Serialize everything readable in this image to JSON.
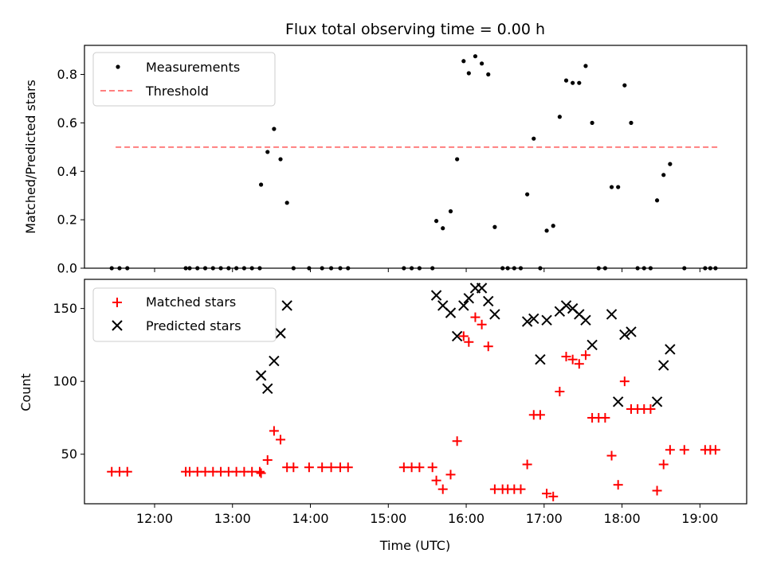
{
  "title": "Flux total observing time = 0.00 h",
  "colors": {
    "measurement": "#000000",
    "threshold": "#ff7f7f",
    "matched": "#ff0000",
    "predicted": "#000000"
  },
  "chart_data": [
    {
      "type": "scatter",
      "title": "Flux total observing time = 0.00 h",
      "ylabel": "Matched/Predicted stars",
      "xlabel": "",
      "xlim": [
        "11:06",
        "19:36"
      ],
      "ylim": [
        0,
        0.92
      ],
      "yticks": [
        "0.0",
        "0.2",
        "0.4",
        "0.6",
        "0.8"
      ],
      "legend_position": "top-left",
      "legend": [
        "Measurements",
        "Threshold"
      ],
      "threshold": {
        "name": "Threshold",
        "y": 0.5,
        "x_start": "11:30",
        "x_end": "19:15"
      },
      "series": [
        {
          "name": "Measurements",
          "points": [
            [
              "11:27",
              0
            ],
            [
              "11:33",
              0
            ],
            [
              "11:39",
              0
            ],
            [
              "12:24",
              0
            ],
            [
              "12:27",
              0
            ],
            [
              "12:33",
              0
            ],
            [
              "12:39",
              0
            ],
            [
              "12:45",
              0
            ],
            [
              "12:51",
              0
            ],
            [
              "12:57",
              0
            ],
            [
              "13:03",
              0
            ],
            [
              "13:09",
              0
            ],
            [
              "13:15",
              0
            ],
            [
              "13:21",
              0
            ],
            [
              "13:22",
              0.345
            ],
            [
              "13:27",
              0.48
            ],
            [
              "13:32",
              0.575
            ],
            [
              "13:37",
              0.45
            ],
            [
              "13:42",
              0.27
            ],
            [
              "13:47",
              0
            ],
            [
              "13:59",
              0
            ],
            [
              "14:09",
              0
            ],
            [
              "14:16",
              0
            ],
            [
              "14:23",
              0
            ],
            [
              "14:29",
              0
            ],
            [
              "15:12",
              0
            ],
            [
              "15:18",
              0
            ],
            [
              "15:24",
              0
            ],
            [
              "15:34",
              0
            ],
            [
              "15:37",
              0.195
            ],
            [
              "15:42",
              0.165
            ],
            [
              "15:48",
              0.235
            ],
            [
              "15:53",
              0.45
            ],
            [
              "15:58",
              0.855
            ],
            [
              "16:02",
              0.805
            ],
            [
              "16:07",
              0.875
            ],
            [
              "16:12",
              0.845
            ],
            [
              "16:17",
              0.8
            ],
            [
              "16:22",
              0.17
            ],
            [
              "16:28",
              0
            ],
            [
              "16:32",
              0
            ],
            [
              "16:37",
              0
            ],
            [
              "16:42",
              0
            ],
            [
              "16:47",
              0.305
            ],
            [
              "16:52",
              0.535
            ],
            [
              "16:57",
              0
            ],
            [
              "17:02",
              0.155
            ],
            [
              "17:07",
              0.175
            ],
            [
              "17:12",
              0.625
            ],
            [
              "17:17",
              0.775
            ],
            [
              "17:22",
              0.765
            ],
            [
              "17:27",
              0.765
            ],
            [
              "17:32",
              0.835
            ],
            [
              "17:37",
              0.6
            ],
            [
              "17:42",
              0
            ],
            [
              "17:47",
              0
            ],
            [
              "17:52",
              0.335
            ],
            [
              "17:57",
              0.335
            ],
            [
              "18:02",
              0.755
            ],
            [
              "18:07",
              0.6
            ],
            [
              "18:12",
              0
            ],
            [
              "18:17",
              0
            ],
            [
              "18:22",
              0
            ],
            [
              "18:27",
              0.28
            ],
            [
              "18:32",
              0.385
            ],
            [
              "18:37",
              0.43
            ],
            [
              "18:48",
              0
            ],
            [
              "19:04",
              0
            ],
            [
              "19:08",
              0
            ],
            [
              "19:12",
              0
            ]
          ]
        }
      ]
    },
    {
      "type": "scatter",
      "ylabel": "Count",
      "xlabel": "Time (UTC)",
      "xlim": [
        "11:06",
        "19:36"
      ],
      "ylim": [
        16,
        170
      ],
      "yticks": [
        "50",
        "100",
        "150"
      ],
      "xticks": [
        "12:00",
        "13:00",
        "14:00",
        "15:00",
        "16:00",
        "17:00",
        "18:00",
        "19:00"
      ],
      "legend_position": "top-left",
      "legend": [
        "Matched stars",
        "Predicted stars"
      ],
      "series": [
        {
          "name": "Matched stars",
          "marker": "+",
          "points": [
            [
              "11:27",
              38
            ],
            [
              "11:33",
              38
            ],
            [
              "11:39",
              38
            ],
            [
              "12:24",
              38
            ],
            [
              "12:27",
              38
            ],
            [
              "12:33",
              38
            ],
            [
              "12:39",
              38
            ],
            [
              "12:45",
              38
            ],
            [
              "12:51",
              38
            ],
            [
              "12:57",
              38
            ],
            [
              "13:03",
              38
            ],
            [
              "13:09",
              38
            ],
            [
              "13:15",
              38
            ],
            [
              "13:21",
              38
            ],
            [
              "13:22",
              37
            ],
            [
              "13:27",
              46
            ],
            [
              "13:32",
              66
            ],
            [
              "13:37",
              60
            ],
            [
              "13:42",
              41
            ],
            [
              "13:47",
              41
            ],
            [
              "13:59",
              41
            ],
            [
              "14:09",
              41
            ],
            [
              "14:16",
              41
            ],
            [
              "14:23",
              41
            ],
            [
              "14:29",
              41
            ],
            [
              "15:12",
              41
            ],
            [
              "15:18",
              41
            ],
            [
              "15:24",
              41
            ],
            [
              "15:34",
              41
            ],
            [
              "15:37",
              32
            ],
            [
              "15:42",
              26
            ],
            [
              "15:48",
              36
            ],
            [
              "15:53",
              59
            ],
            [
              "15:58",
              131
            ],
            [
              "16:02",
              127
            ],
            [
              "16:07",
              144
            ],
            [
              "16:12",
              139
            ],
            [
              "16:17",
              124
            ],
            [
              "16:22",
              26
            ],
            [
              "16:28",
              26
            ],
            [
              "16:32",
              26
            ],
            [
              "16:37",
              26
            ],
            [
              "16:42",
              26
            ],
            [
              "16:47",
              43
            ],
            [
              "16:52",
              77
            ],
            [
              "16:57",
              77
            ],
            [
              "17:02",
              23
            ],
            [
              "17:07",
              21
            ],
            [
              "17:12",
              93
            ],
            [
              "17:17",
              117
            ],
            [
              "17:22",
              115
            ],
            [
              "17:27",
              112
            ],
            [
              "17:32",
              118
            ],
            [
              "17:37",
              75
            ],
            [
              "17:42",
              75
            ],
            [
              "17:47",
              75
            ],
            [
              "17:52",
              49
            ],
            [
              "17:57",
              29
            ],
            [
              "18:02",
              100
            ],
            [
              "18:07",
              81
            ],
            [
              "18:12",
              81
            ],
            [
              "18:17",
              81
            ],
            [
              "18:22",
              81
            ],
            [
              "18:27",
              25
            ],
            [
              "18:32",
              43
            ],
            [
              "18:37",
              53
            ],
            [
              "18:48",
              53
            ],
            [
              "19:04",
              53
            ],
            [
              "19:08",
              53
            ],
            [
              "19:12",
              53
            ]
          ]
        },
        {
          "name": "Predicted stars",
          "marker": "x",
          "points": [
            [
              "13:22",
              104
            ],
            [
              "13:27",
              95
            ],
            [
              "13:32",
              114
            ],
            [
              "13:37",
              133
            ],
            [
              "13:42",
              152
            ],
            [
              "15:37",
              159
            ],
            [
              "15:42",
              152
            ],
            [
              "15:48",
              147
            ],
            [
              "15:53",
              131
            ],
            [
              "15:58",
              152
            ],
            [
              "16:02",
              157
            ],
            [
              "16:07",
              164
            ],
            [
              "16:12",
              164
            ],
            [
              "16:17",
              155
            ],
            [
              "16:22",
              146
            ],
            [
              "16:47",
              141
            ],
            [
              "16:52",
              143
            ],
            [
              "16:57",
              115
            ],
            [
              "17:02",
              142
            ],
            [
              "17:12",
              148
            ],
            [
              "17:17",
              152
            ],
            [
              "17:22",
              150
            ],
            [
              "17:27",
              146
            ],
            [
              "17:32",
              142
            ],
            [
              "17:37",
              125
            ],
            [
              "17:52",
              146
            ],
            [
              "17:57",
              86
            ],
            [
              "18:02",
              132
            ],
            [
              "18:07",
              134
            ],
            [
              "18:27",
              86
            ],
            [
              "18:32",
              111
            ],
            [
              "18:37",
              122
            ]
          ]
        }
      ]
    }
  ]
}
